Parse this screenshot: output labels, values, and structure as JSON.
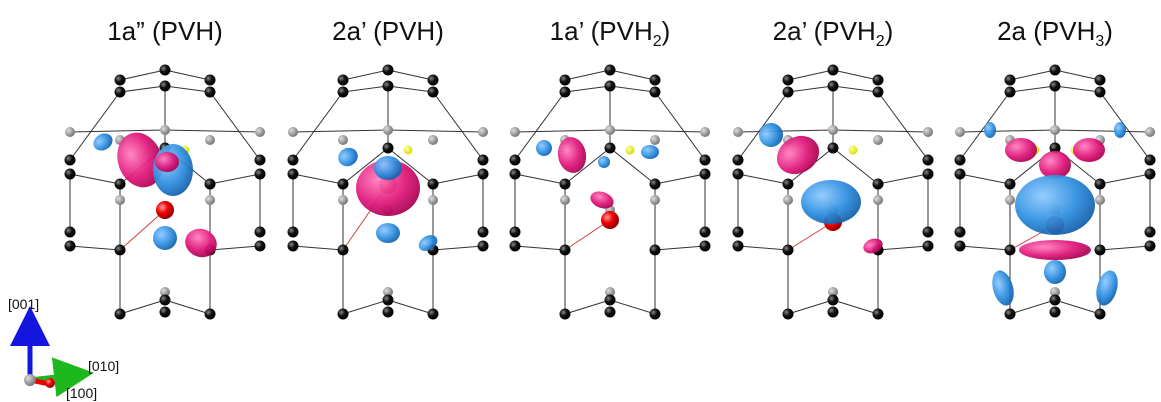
{
  "panels": [
    {
      "title_parts": [
        "1a” (PVH)"
      ]
    },
    {
      "title_parts": [
        "2a’ (PVH)"
      ]
    },
    {
      "title_parts": [
        "1a’ (PVH",
        "2",
        ")"
      ]
    },
    {
      "title_parts": [
        "2a’ (PVH",
        "2",
        ")"
      ]
    },
    {
      "title_parts": [
        "2a (PVH",
        "3",
        ")"
      ]
    }
  ],
  "axes": {
    "z": "[001]",
    "y": "[010]",
    "x": "[100]"
  }
}
